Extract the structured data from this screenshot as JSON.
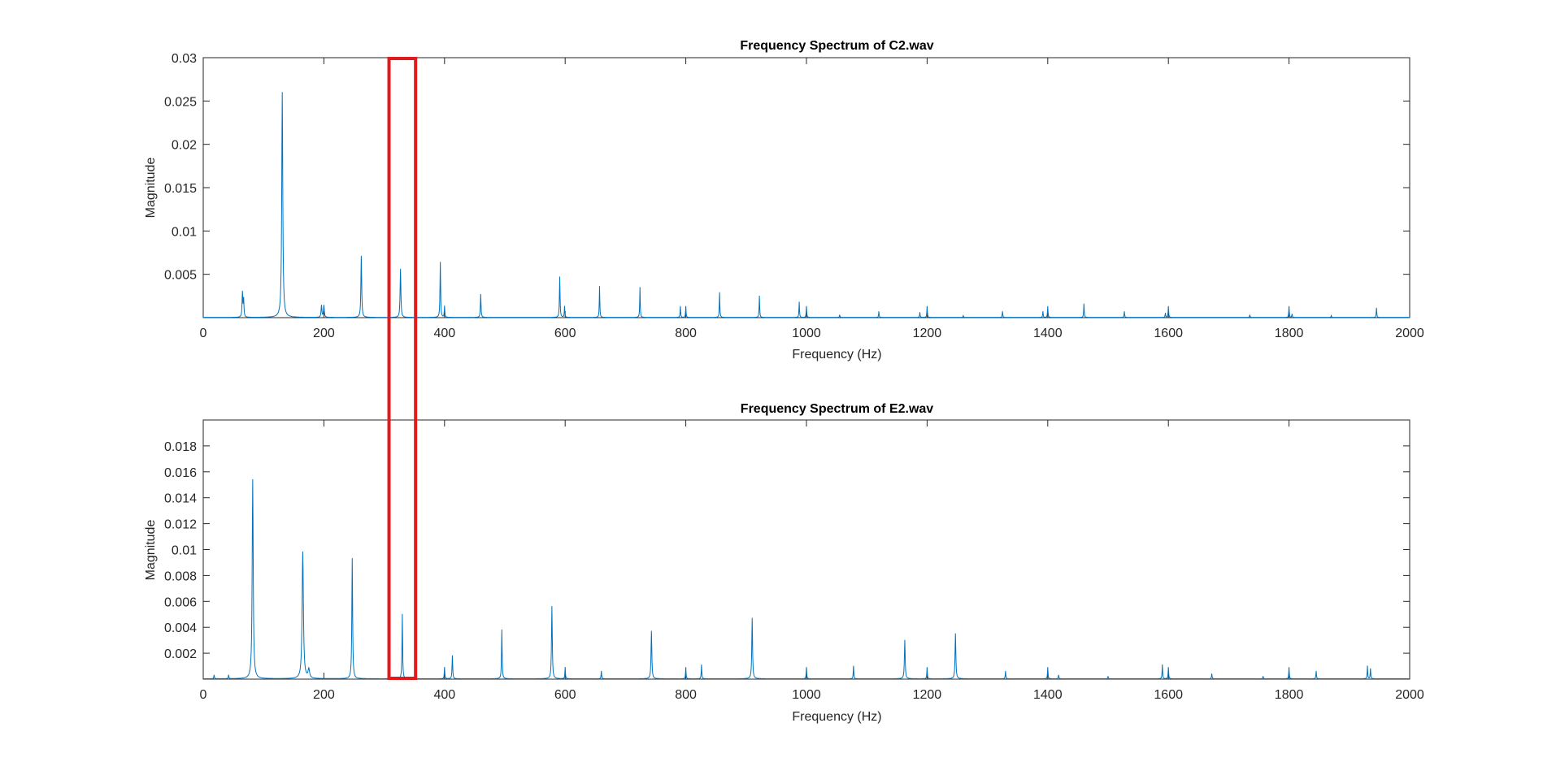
{
  "chart_data": [
    {
      "type": "line",
      "title": "Frequency Spectrum of C2.wav",
      "xlabel": "Frequency (Hz)",
      "ylabel": "Magnitude",
      "xlim": [
        0,
        2000
      ],
      "ylim": [
        0,
        0.03
      ],
      "xticks": [
        0,
        200,
        400,
        600,
        800,
        1000,
        1200,
        1400,
        1600,
        1800,
        2000
      ],
      "yticks": [
        0.005,
        0.01,
        0.015,
        0.02,
        0.025,
        0.03
      ],
      "ytick_labels": [
        "0.005",
        "0.01",
        "0.015",
        "0.02",
        "0.025",
        "0.03"
      ],
      "grid": false,
      "series": [
        {
          "color": "#0072BD",
          "peaks": [
            [
              65,
              0.0029,
              1.5
            ],
            [
              67,
              0.002,
              1.2
            ],
            [
              131,
              0.026,
              2.0
            ],
            [
              196,
              0.0014,
              1.5
            ],
            [
              200,
              0.0014,
              1.5
            ],
            [
              262,
              0.0071,
              1.5
            ],
            [
              327,
              0.0056,
              1.5
            ],
            [
              393,
              0.0064,
              1.2
            ],
            [
              400,
              0.0013,
              1.0
            ],
            [
              460,
              0.0027,
              1.2
            ],
            [
              591,
              0.0047,
              1.2
            ],
            [
              599,
              0.0013,
              1.0
            ],
            [
              657,
              0.0036,
              1.0
            ],
            [
              724,
              0.0035,
              1.0
            ],
            [
              791,
              0.0013,
              1.0
            ],
            [
              800,
              0.0013,
              1.0
            ],
            [
              856,
              0.0029,
              1.0
            ],
            [
              922,
              0.0025,
              1.0
            ],
            [
              988,
              0.0018,
              1.0
            ],
            [
              1000,
              0.0013,
              1.0
            ],
            [
              1055,
              0.0003,
              1.0
            ],
            [
              1120,
              0.0007,
              1.0
            ],
            [
              1188,
              0.0006,
              1.0
            ],
            [
              1200,
              0.0013,
              1.0
            ],
            [
              1260,
              0.0002,
              1.0
            ],
            [
              1325,
              0.0007,
              1.0
            ],
            [
              1392,
              0.0007,
              1.0
            ],
            [
              1400,
              0.0013,
              1.0
            ],
            [
              1460,
              0.0016,
              1.0
            ],
            [
              1527,
              0.0007,
              1.0
            ],
            [
              1595,
              0.0005,
              1.0
            ],
            [
              1600,
              0.0013,
              1.0
            ],
            [
              1735,
              0.0003,
              1.0
            ],
            [
              1800,
              0.0013,
              1.0
            ],
            [
              1805,
              0.0004,
              1.0
            ],
            [
              1870,
              0.0002,
              1.0
            ],
            [
              1945,
              0.0011,
              1.0
            ]
          ]
        }
      ]
    },
    {
      "type": "line",
      "title": "Frequency Spectrum of E2.wav",
      "xlabel": "Frequency (Hz)",
      "ylabel": "Magnitude",
      "xlim": [
        0,
        2000
      ],
      "ylim": [
        0,
        0.02
      ],
      "xticks": [
        0,
        200,
        400,
        600,
        800,
        1000,
        1200,
        1400,
        1600,
        1800,
        2000
      ],
      "yticks": [
        0.002,
        0.004,
        0.006,
        0.008,
        0.01,
        0.012,
        0.014,
        0.016,
        0.018
      ],
      "ytick_labels": [
        "0.002",
        "0.004",
        "0.006",
        "0.008",
        "0.01",
        "0.012",
        "0.014",
        "0.016",
        "0.018"
      ],
      "grid": false,
      "series": [
        {
          "color": "#0072BD",
          "peaks": [
            [
              18,
              0.0003,
              1.0
            ],
            [
              42,
              0.0003,
              1.0
            ],
            [
              82,
              0.0154,
              2.0
            ],
            [
              165,
              0.0098,
              2.5
            ],
            [
              175,
              0.0007,
              3.0
            ],
            [
              247,
              0.0093,
              1.5
            ],
            [
              330,
              0.005,
              1.2
            ],
            [
              400,
              0.0009,
              1.0
            ],
            [
              413,
              0.0018,
              1.2
            ],
            [
              495,
              0.0038,
              1.2
            ],
            [
              578,
              0.0056,
              1.5
            ],
            [
              600,
              0.0009,
              1.0
            ],
            [
              660,
              0.0006,
              1.0
            ],
            [
              743,
              0.0037,
              1.5
            ],
            [
              800,
              0.0009,
              1.0
            ],
            [
              826,
              0.0011,
              1.0
            ],
            [
              910,
              0.0047,
              1.5
            ],
            [
              1000,
              0.0009,
              1.0
            ],
            [
              1078,
              0.001,
              1.0
            ],
            [
              1163,
              0.003,
              1.5
            ],
            [
              1200,
              0.0009,
              1.0
            ],
            [
              1247,
              0.0035,
              1.5
            ],
            [
              1330,
              0.0006,
              1.0
            ],
            [
              1400,
              0.0009,
              1.0
            ],
            [
              1418,
              0.0003,
              1.0
            ],
            [
              1500,
              0.0002,
              1.0
            ],
            [
              1590,
              0.0011,
              1.0
            ],
            [
              1600,
              0.0009,
              1.0
            ],
            [
              1672,
              0.0004,
              1.0
            ],
            [
              1757,
              0.0002,
              1.0
            ],
            [
              1800,
              0.0009,
              1.0
            ],
            [
              1845,
              0.0006,
              1.0
            ],
            [
              1930,
              0.001,
              1.0
            ],
            [
              1935,
              0.0008,
              1.0
            ]
          ]
        }
      ]
    }
  ],
  "highlight": {
    "color": "#E31A1C",
    "x_range": [
      308,
      352
    ]
  }
}
